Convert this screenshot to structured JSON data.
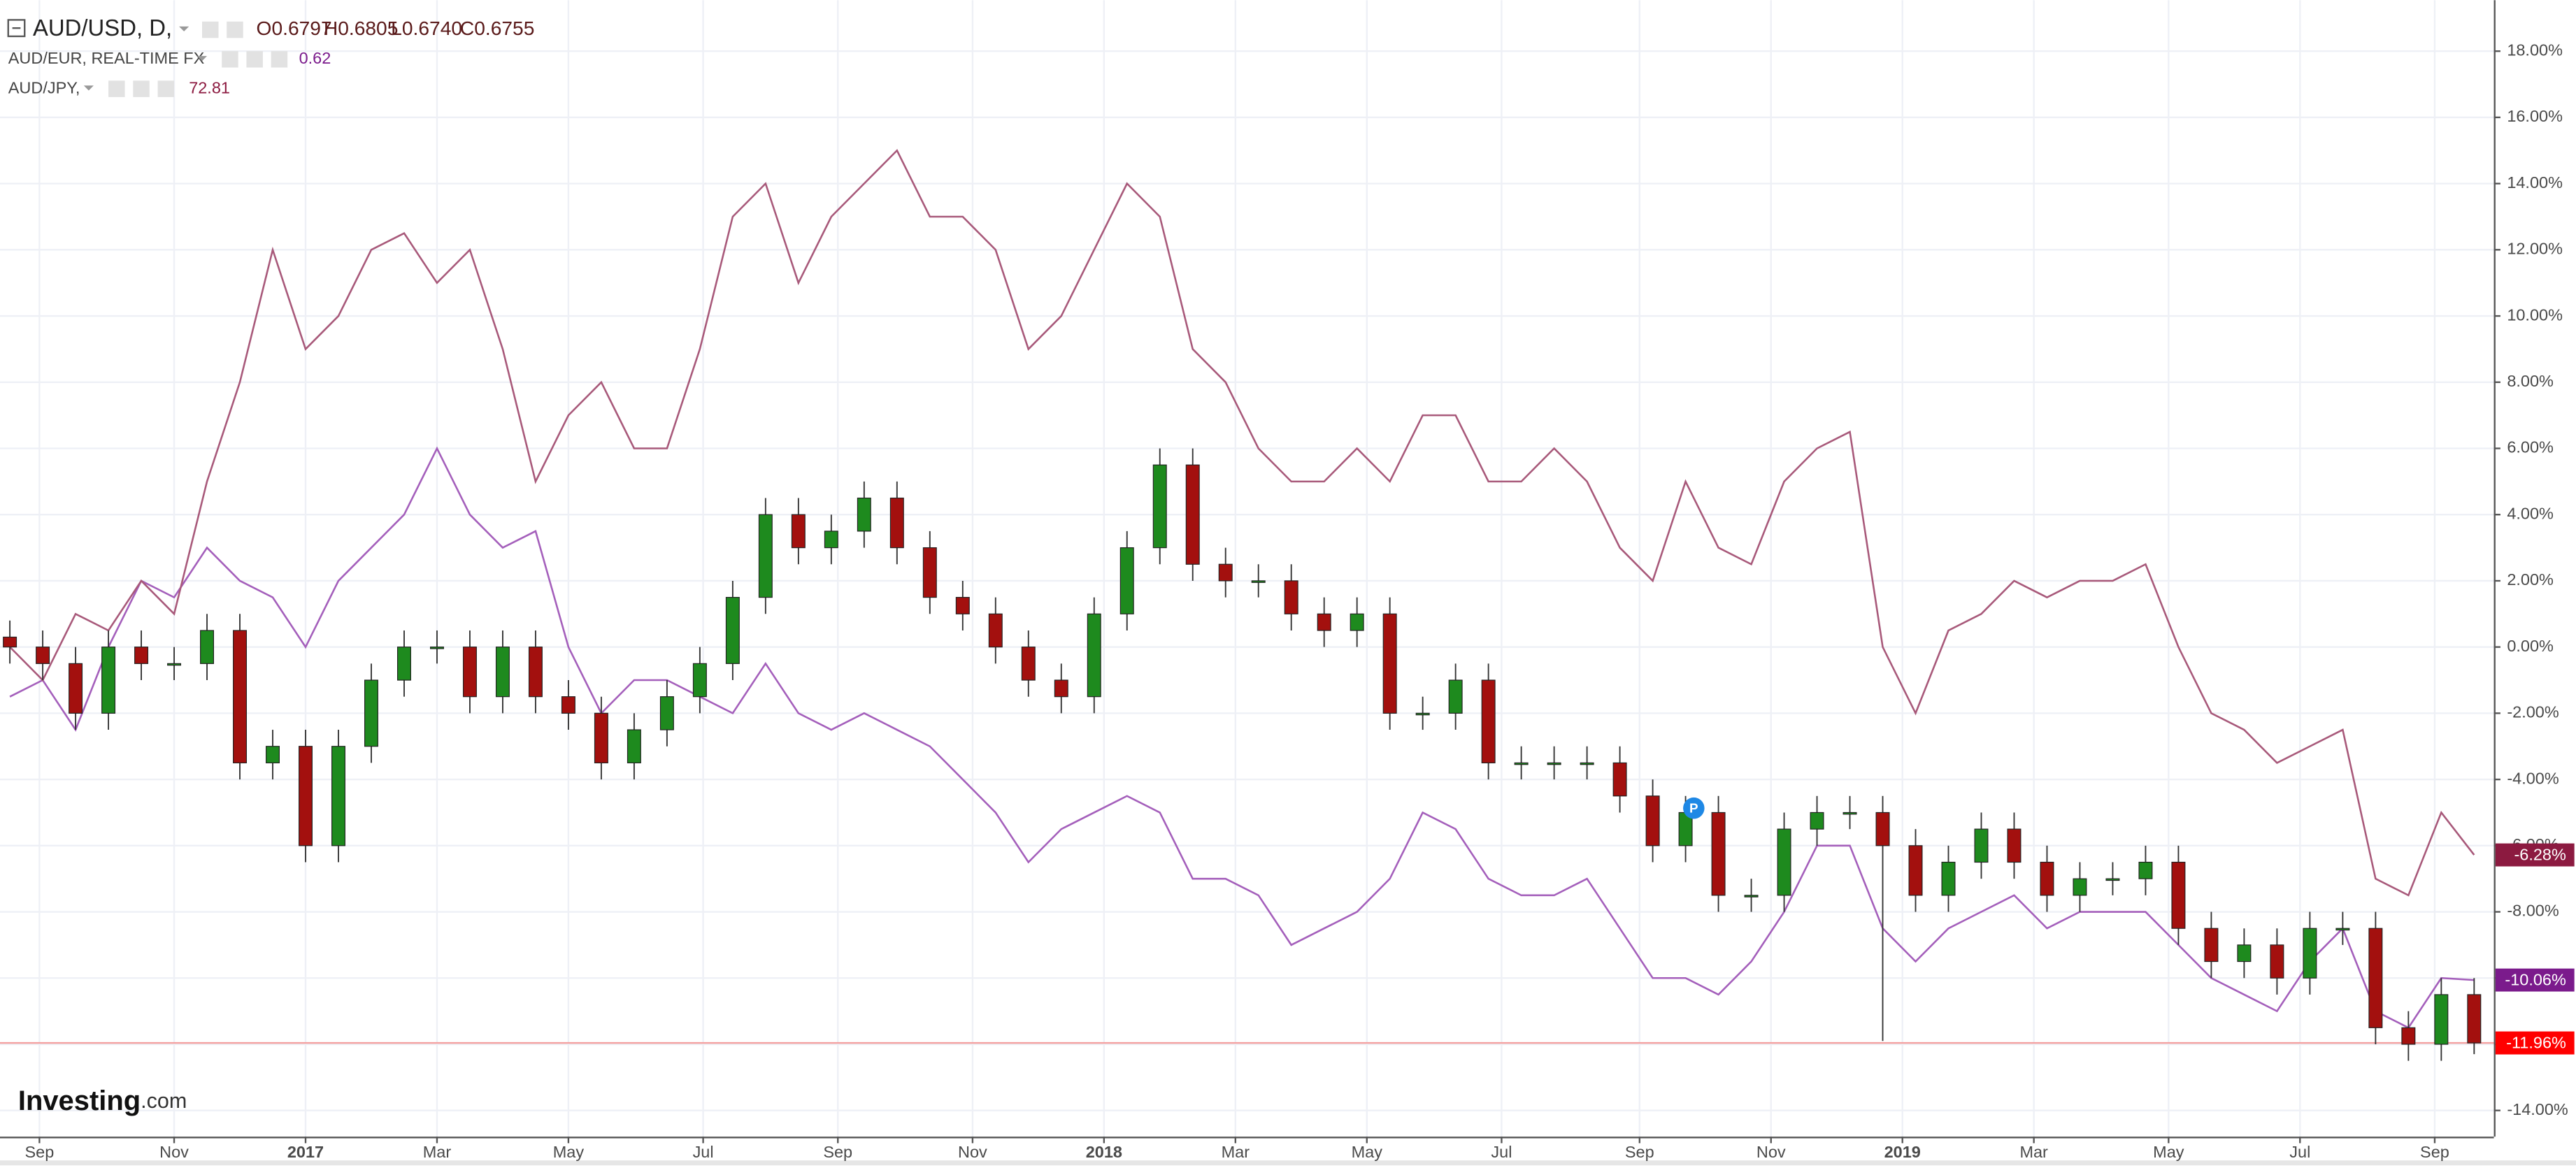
{
  "chart_data": {
    "type": "candlestick",
    "ohlc_labels": [
      "O0.6797",
      "H0.6805",
      "L0.6740",
      "C0.6755"
    ],
    "x": [
      0,
      1,
      2,
      3,
      4,
      5,
      6,
      7,
      8,
      9,
      10,
      11,
      12,
      13,
      14,
      15,
      16,
      17,
      18,
      19,
      20,
      21,
      22,
      23,
      24,
      25,
      26,
      27,
      28,
      29,
      30,
      31,
      32,
      33,
      34,
      35,
      36,
      37,
      38,
      39,
      40,
      41,
      42,
      43,
      44,
      45,
      46,
      47,
      48,
      49,
      50,
      51,
      52,
      53,
      54,
      55,
      56,
      57,
      58,
      59,
      60,
      61,
      62,
      63,
      64,
      65,
      66,
      67,
      68,
      69,
      70,
      71,
      72,
      73,
      74,
      75
    ],
    "xlim": [
      -0.3,
      75.6
    ],
    "xticks": [
      {
        "value": 0.9,
        "label": "Sep"
      },
      {
        "value": 5.0,
        "label": "Nov"
      },
      {
        "value": 9.0,
        "label": "2017"
      },
      {
        "value": 13.0,
        "label": "Mar"
      },
      {
        "value": 17.0,
        "label": "May"
      },
      {
        "value": 21.1,
        "label": "Jul"
      },
      {
        "value": 25.2,
        "label": "Sep"
      },
      {
        "value": 29.3,
        "label": "Nov"
      },
      {
        "value": 33.3,
        "label": "2018"
      },
      {
        "value": 37.3,
        "label": "Mar"
      },
      {
        "value": 41.3,
        "label": "May"
      },
      {
        "value": 45.4,
        "label": "Jul"
      },
      {
        "value": 49.6,
        "label": "Sep"
      },
      {
        "value": 53.6,
        "label": "Nov"
      },
      {
        "value": 57.6,
        "label": "2019"
      },
      {
        "value": 61.6,
        "label": "Mar"
      },
      {
        "value": 65.7,
        "label": "May"
      },
      {
        "value": 69.7,
        "label": "Jul"
      },
      {
        "value": 73.8,
        "label": "Sep"
      }
    ],
    "ylim": [
      -14.79,
      19.54
    ],
    "yticks": [
      {
        "value": 18,
        "label": "18.00%"
      },
      {
        "value": 16,
        "label": "16.00%"
      },
      {
        "value": 14,
        "label": "14.00%"
      },
      {
        "value": 12,
        "label": "12.00%"
      },
      {
        "value": 10,
        "label": "10.00%"
      },
      {
        "value": 8,
        "label": "8.00%"
      },
      {
        "value": 6,
        "label": "6.00%"
      },
      {
        "value": 4,
        "label": "4.00%"
      },
      {
        "value": 2,
        "label": "2.00%"
      },
      {
        "value": 0,
        "label": "0.00%"
      },
      {
        "value": -2,
        "label": "-2.00%"
      },
      {
        "value": -4,
        "label": "-4.00%"
      },
      {
        "value": -6,
        "label": "-6.00%"
      },
      {
        "value": -8,
        "label": "-8.00%"
      },
      {
        "value": -10,
        "label": "-10.00%"
      },
      {
        "value": -12,
        "label": "-12.00%"
      },
      {
        "value": -14,
        "label": "-14.00%"
      }
    ],
    "grid": true,
    "series": [
      {
        "name": "AUD/USD, D,",
        "type": "candlestick",
        "up_color": "#1e8a1e",
        "down_color": "#a3100e",
        "label_color": "#ff0000",
        "open": [
          0.3,
          0,
          -0.5,
          -2,
          0,
          -0.5,
          -0.5,
          0.5,
          -3.5,
          -3,
          -6,
          -3,
          -1,
          0,
          0,
          -1.5,
          0,
          -1.5,
          -2,
          -3.5,
          -2.5,
          -1.5,
          -0.5,
          1.5,
          4,
          3,
          3.5,
          4.5,
          3,
          1.5,
          1,
          0,
          -1,
          -1.5,
          1,
          3,
          5.5,
          2.5,
          2,
          2,
          1,
          0.5,
          1,
          -2,
          -2,
          -1,
          -3.5,
          -3.5,
          -3.5,
          -3.5,
          -4.5,
          -6,
          -5,
          -7.5,
          -7.5,
          -5.5,
          -5,
          -5,
          -6,
          -7.5,
          -6.5,
          -5.5,
          -6.5,
          -7.5,
          -7,
          -7,
          -6.5,
          -8.5,
          -9.5,
          -9,
          -10,
          -8.5,
          -8.5,
          -11.5,
          -12,
          -10.5
        ],
        "high": [
          0.8,
          0.5,
          0,
          0.5,
          0.5,
          0,
          1,
          1,
          -2.5,
          -2.5,
          -2.5,
          -0.5,
          0.5,
          0.5,
          0.5,
          0.5,
          0.5,
          -1,
          -1.5,
          -2,
          -1,
          0,
          2,
          4.5,
          4.5,
          4,
          5,
          5,
          3.5,
          2,
          1.5,
          0.5,
          -0.5,
          1.5,
          3.5,
          6,
          6,
          3,
          2.5,
          2.5,
          1.5,
          1.5,
          1.5,
          -1.5,
          -0.5,
          -0.5,
          -3,
          -3,
          -3,
          -3,
          -4,
          -4.5,
          -4.5,
          -7,
          -5,
          -4.5,
          -4.5,
          -4.5,
          -5.5,
          -6,
          -5,
          -5,
          -6,
          -6.5,
          -6.5,
          -6,
          -6,
          -8,
          -8.5,
          -8.5,
          -8,
          -8,
          -8,
          -11,
          -10,
          -10
        ],
        "low": [
          -0.5,
          -1,
          -2.5,
          -2.5,
          -1,
          -1,
          -1,
          -4,
          -4,
          -6.5,
          -6.5,
          -3.5,
          -1.5,
          -0.5,
          -2,
          -2,
          -2,
          -2.5,
          -4,
          -4,
          -3,
          -2,
          -1,
          1,
          2.5,
          2.5,
          3,
          2.5,
          1,
          0.5,
          -0.5,
          -1.5,
          -2,
          -2,
          0.5,
          2.5,
          2,
          1.5,
          1.5,
          0.5,
          0,
          0,
          -2.5,
          -2.5,
          -2.5,
          -4,
          -4,
          -4,
          -4,
          -5,
          -6.5,
          -6.5,
          -8,
          -8,
          -8,
          -6,
          -5.5,
          -11.9,
          -8,
          -8,
          -7,
          -7,
          -8,
          -8,
          -7.5,
          -7.5,
          -9,
          -10,
          -10,
          -10.5,
          -10.5,
          -9,
          -12,
          -12.5,
          -12.5,
          -12.3
        ],
        "close": [
          0,
          -0.5,
          -2,
          0,
          -0.5,
          -0.5,
          0.5,
          -3.5,
          -3,
          -6,
          -3,
          -1,
          0,
          0,
          -1.5,
          0,
          -1.5,
          -2,
          -3.5,
          -2.5,
          -1.5,
          -0.5,
          1.5,
          4,
          3,
          3.5,
          4.5,
          3,
          1.5,
          1,
          0,
          -1,
          -1.5,
          1,
          3,
          5.5,
          2.5,
          2,
          2,
          1,
          0.5,
          1,
          -2,
          -2,
          -1,
          -3.5,
          -3.5,
          -3.5,
          -3.5,
          -4.5,
          -6,
          -5,
          -7.5,
          -7.5,
          -5.5,
          -5,
          -5,
          -6,
          -7.5,
          -6.5,
          -5.5,
          -6.5,
          -7.5,
          -7,
          -7,
          -6.5,
          -8.5,
          -9.5,
          -9,
          -10,
          -8.5,
          -8.5,
          -11.5,
          -12,
          -10.5,
          -11.96
        ],
        "last_label": "-11.96%"
      },
      {
        "name": "AUD/EUR, REAL-TIME FX",
        "type": "line",
        "color": "#a45fbb",
        "label_color": "#7b1b8c",
        "price": "0.62",
        "values": [
          -1.5,
          -1,
          -2.5,
          0,
          2,
          1.5,
          3,
          2,
          1.5,
          0,
          2,
          3,
          4,
          6,
          4,
          3,
          3.5,
          0,
          -2,
          -1,
          -1,
          -1.5,
          -2,
          -0.5,
          -2,
          -2.5,
          -2,
          -2.5,
          -3,
          -4,
          -5,
          -6.5,
          -5.5,
          -5,
          -4.5,
          -5,
          -7,
          -7,
          -7.5,
          -9,
          -8.5,
          -8,
          -7,
          -5,
          -5.5,
          -7,
          -7.5,
          -7.5,
          -7,
          -8.5,
          -10,
          -10,
          -10.5,
          -9.5,
          -8,
          -6,
          -6,
          -8.5,
          -9.5,
          -8.5,
          -8,
          -7.5,
          -8.5,
          -8,
          -8,
          -8,
          -9,
          -10,
          -10.5,
          -11,
          -9.5,
          -8.5,
          -11,
          -11.5,
          -10,
          -10.06
        ],
        "last_label": "-10.06%"
      },
      {
        "name": "AUD/JPY,",
        "type": "line",
        "color": "#a8597a",
        "label_color": "#8c1a40",
        "price": "72.81",
        "values": [
          0,
          -1,
          1,
          0.5,
          2,
          1,
          5,
          8,
          12,
          9,
          10,
          12,
          12.5,
          11,
          12,
          9,
          5,
          7,
          8,
          6,
          6,
          9,
          13,
          14,
          11,
          13,
          14,
          15,
          13,
          13,
          12,
          9,
          10,
          12,
          14,
          13,
          9,
          8,
          6,
          5,
          5,
          6,
          5,
          7,
          7,
          5,
          5,
          6,
          5,
          3,
          2,
          5,
          3,
          2.5,
          5,
          6,
          6.5,
          0,
          -2,
          0.5,
          1,
          2,
          1.5,
          2,
          2,
          2.5,
          0,
          -2,
          -2.5,
          -3.5,
          -3,
          -2.5,
          -7,
          -7.5,
          -5,
          -6.28
        ],
        "last_label": "-6.28%"
      }
    ],
    "marker": "P",
    "logo": [
      "Investing",
      ".com"
    ]
  }
}
